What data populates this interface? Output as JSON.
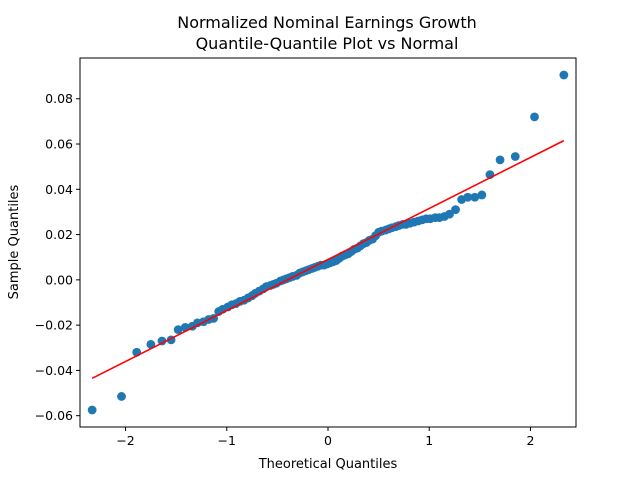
{
  "chart_data": {
    "type": "scatter",
    "title_line1": "Normalized Nominal Earnings Growth",
    "title_line2": "Quantile-Quantile Plot vs Normal",
    "xlabel": "Theoretical Quantiles",
    "ylabel": "Sample Quantiles",
    "xlim": [
      -2.45,
      2.45
    ],
    "ylim": [
      -0.065,
      0.098
    ],
    "x_ticks": [
      -2,
      -1,
      0,
      1,
      2
    ],
    "x_tick_labels": [
      "−2",
      "−1",
      "0",
      "1",
      "2"
    ],
    "y_ticks": [
      -0.06,
      -0.04,
      -0.02,
      0.0,
      0.02,
      0.04,
      0.06,
      0.08
    ],
    "y_tick_labels": [
      "−0.06",
      "−0.04",
      "−0.02",
      "0.00",
      "0.02",
      "0.04",
      "0.06",
      "0.08"
    ],
    "grid": false,
    "colors": {
      "points": "#1f77b4",
      "reference_line": "#ff0000"
    },
    "reference_line": {
      "x": [
        -2.33,
        2.33
      ],
      "y": [
        -0.0435,
        0.0615
      ]
    },
    "points": {
      "x": [
        -2.33,
        -2.04,
        -1.89,
        -1.75,
        -1.64,
        -1.55,
        -1.48,
        -1.41,
        -1.34,
        -1.29,
        -1.23,
        -1.18,
        -1.13,
        -1.08,
        -1.04,
        -0.99,
        -0.95,
        -0.91,
        -0.87,
        -0.83,
        -0.79,
        -0.75,
        -0.72,
        -0.68,
        -0.64,
        -0.61,
        -0.57,
        -0.54,
        -0.51,
        -0.47,
        -0.44,
        -0.41,
        -0.38,
        -0.35,
        -0.31,
        -0.28,
        -0.25,
        -0.22,
        -0.19,
        -0.16,
        -0.13,
        -0.1,
        -0.07,
        -0.04,
        -0.01,
        0.02,
        0.05,
        0.08,
        0.11,
        0.14,
        0.17,
        0.2,
        0.23,
        0.26,
        0.29,
        0.32,
        0.35,
        0.38,
        0.41,
        0.44,
        0.47,
        0.5,
        0.53,
        0.57,
        0.6,
        0.63,
        0.67,
        0.7,
        0.74,
        0.77,
        0.81,
        0.85,
        0.89,
        0.93,
        0.97,
        1.01,
        1.06,
        1.1,
        1.15,
        1.2,
        1.26,
        1.32,
        1.38,
        1.45,
        1.52,
        1.6,
        1.7,
        1.85,
        2.04,
        2.33
      ],
      "y": [
        -0.0575,
        -0.0515,
        -0.032,
        -0.0285,
        -0.027,
        -0.0265,
        -0.022,
        -0.021,
        -0.0205,
        -0.019,
        -0.0185,
        -0.0175,
        -0.017,
        -0.014,
        -0.013,
        -0.012,
        -0.011,
        -0.0105,
        -0.0095,
        -0.009,
        -0.008,
        -0.007,
        -0.006,
        -0.005,
        -0.004,
        -0.003,
        -0.0025,
        -0.002,
        -0.0015,
        -0.0005,
        0.0,
        0.0005,
        0.001,
        0.0015,
        0.002,
        0.003,
        0.0035,
        0.004,
        0.0045,
        0.005,
        0.0055,
        0.006,
        0.0065,
        0.0065,
        0.007,
        0.0075,
        0.008,
        0.0085,
        0.0095,
        0.0105,
        0.011,
        0.0115,
        0.0125,
        0.0135,
        0.014,
        0.015,
        0.016,
        0.0165,
        0.0175,
        0.018,
        0.0195,
        0.021,
        0.0215,
        0.022,
        0.0225,
        0.023,
        0.0235,
        0.024,
        0.0245,
        0.0245,
        0.025,
        0.0255,
        0.026,
        0.0265,
        0.027,
        0.027,
        0.0275,
        0.0275,
        0.028,
        0.029,
        0.031,
        0.0355,
        0.0365,
        0.0365,
        0.0375,
        0.0465,
        0.053,
        0.0545,
        0.072,
        0.0905
      ]
    }
  }
}
